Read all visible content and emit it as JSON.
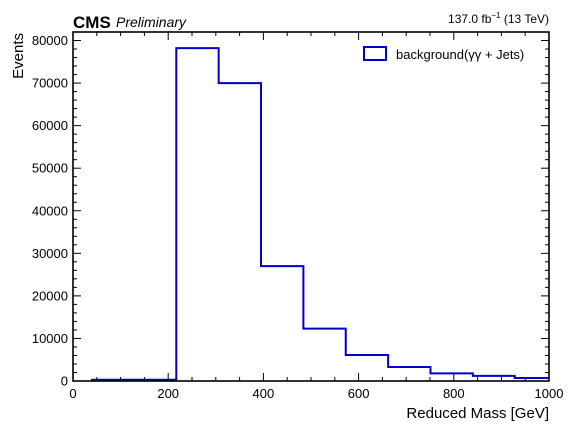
{
  "header": {
    "experiment": "CMS",
    "status": "Preliminary",
    "lumi_value": "137.0 fb",
    "lumi_exp": "−1",
    "energy": " (13 TeV)"
  },
  "chart_data": {
    "type": "histogram-step",
    "xlabel": "Reduced Mass [GeV]",
    "ylabel": "Events",
    "xlim": [
      0,
      1000
    ],
    "ylim": [
      0,
      82000
    ],
    "x_ticks": [
      0,
      200,
      400,
      600,
      800,
      1000
    ],
    "x_tick_labels": [
      "0",
      "200",
      "400",
      "600",
      "800",
      "1000"
    ],
    "y_ticks": [
      0,
      10000,
      20000,
      30000,
      40000,
      50000,
      60000,
      70000,
      80000
    ],
    "y_tick_labels": [
      "0",
      "10000",
      "20000",
      "30000",
      "40000",
      "50000",
      "60000",
      "70000",
      "80000"
    ],
    "bin_edges": [
      40,
      217,
      306,
      395,
      484,
      573,
      662,
      751,
      840,
      928,
      1000
    ],
    "series": [
      {
        "name": "background(γγ + Jets)",
        "color": "#0000cc",
        "values": [
          300,
          78200,
          70000,
          27000,
          12300,
          6100,
          3300,
          1800,
          1200,
          700
        ]
      }
    ],
    "legend_position": "top-right",
    "grid": false
  }
}
